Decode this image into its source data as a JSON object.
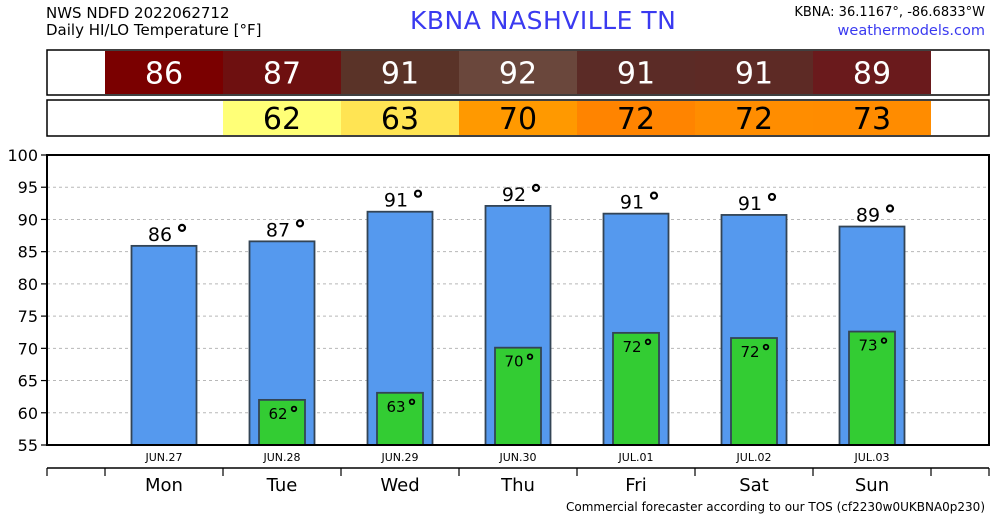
{
  "header": {
    "product": "NWS NDFD 2022062712",
    "subtitle": "Daily HI/LO Temperature [°F]",
    "station": "KBNA  NASHVILLE     TN",
    "coords": "KBNA: 36.1167°, -86.6833°W",
    "site": "weathermodels.com"
  },
  "footer": "Commercial forecaster according to our TOS (cf2230w0UKBNA0p230)",
  "strip_colors": {
    "highs": [
      "#7a0000",
      "#6e1010",
      "#5a3328",
      "#6a473c",
      "#5b2b26",
      "#5d2a25",
      "#6a1a1c"
    ],
    "lows": [
      null,
      "#ffff77",
      "#ffe453",
      "#ff9900",
      "#ff8400",
      "#ff8d00",
      "#ff8c00"
    ]
  },
  "colors": {
    "high_bar": "#5599ee",
    "low_bar": "#33cc33",
    "bar_edge": "#334455"
  },
  "chart_data": {
    "type": "bar",
    "categories": [
      "JUN.27",
      "JUN.28",
      "JUN.29",
      "JUN.30",
      "JUL.01",
      "JUL.02",
      "JUL.03"
    ],
    "weekdays": [
      "Mon",
      "Tue",
      "Wed",
      "Thu",
      "Fri",
      "Sat",
      "Sun"
    ],
    "series": [
      {
        "values": [
          85.9,
          86.6,
          91.2,
          92.1,
          90.9,
          90.7,
          88.9
        ],
        "labels": [
          "86",
          "87",
          "91",
          "92",
          "91",
          "91",
          "89"
        ]
      },
      {
        "values": [
          null,
          62.0,
          63.1,
          70.1,
          72.4,
          71.6,
          72.6
        ],
        "labels": [
          null,
          "62",
          "63",
          "70",
          "72",
          "72",
          "73"
        ]
      }
    ],
    "ylim": [
      55,
      100
    ],
    "yticks": [
      55,
      60,
      65,
      70,
      75,
      80,
      85,
      90,
      95,
      100
    ],
    "grid": true
  }
}
